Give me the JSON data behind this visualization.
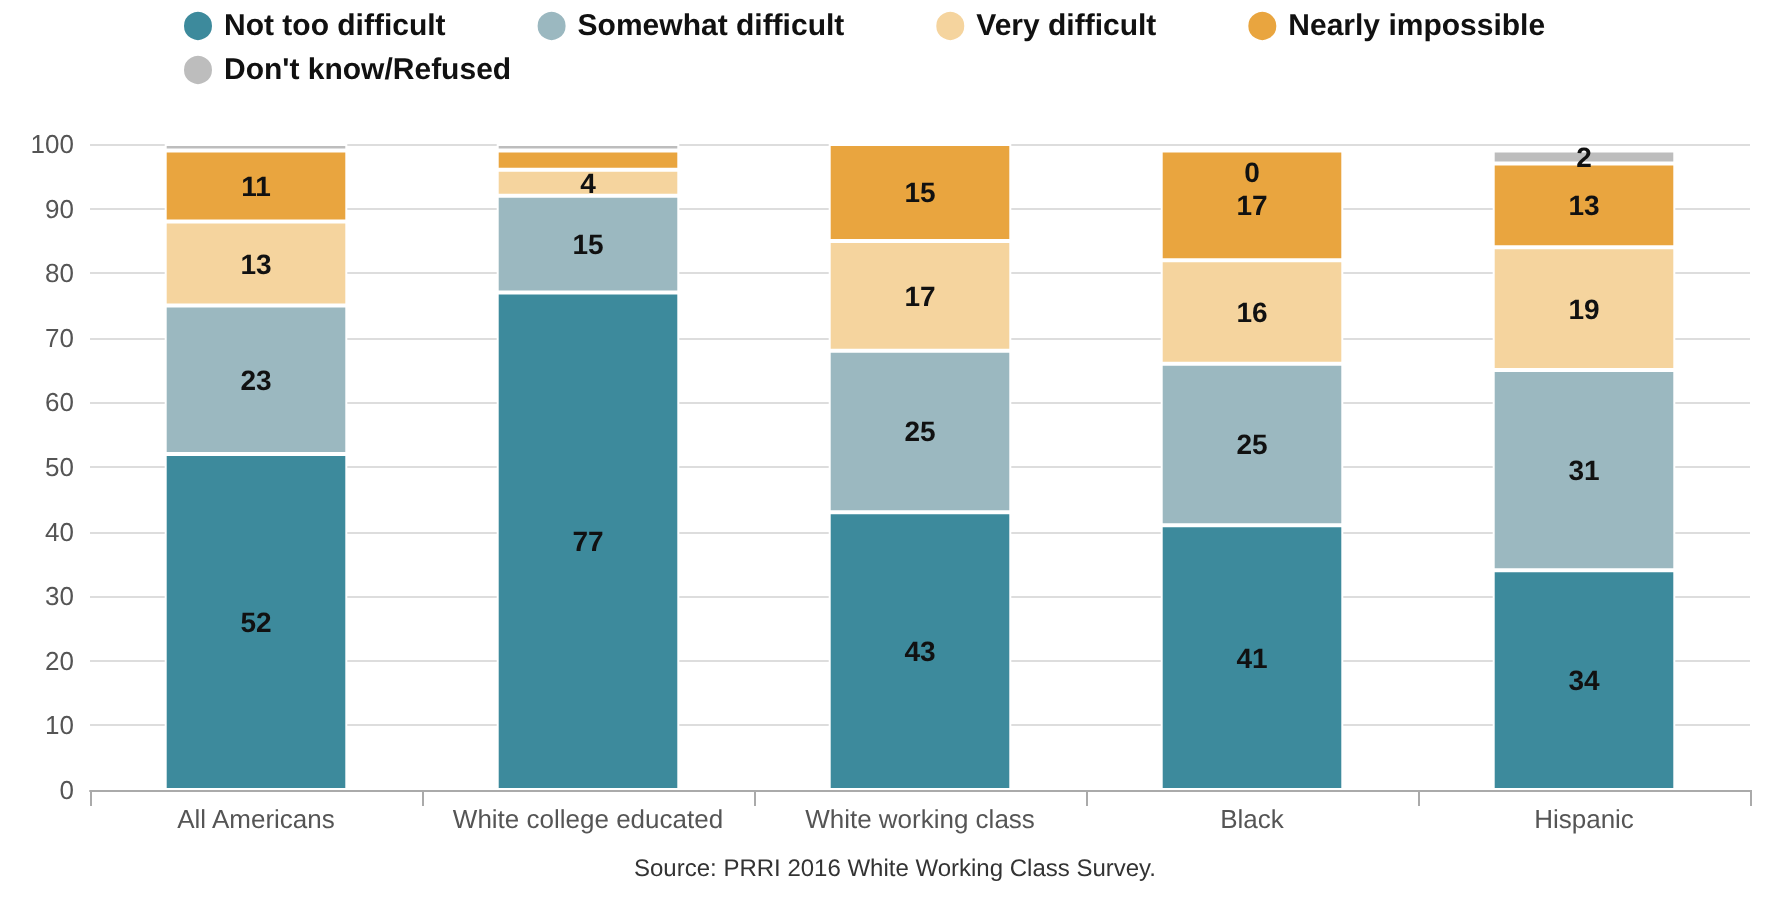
{
  "chart_data": {
    "type": "bar",
    "stacked": true,
    "categories": [
      "All Americans",
      "White college educated",
      "White working class",
      "Black",
      "Hispanic"
    ],
    "series": [
      {
        "name": "Not too difficult",
        "color": "#3d8a9c",
        "values": [
          52,
          77,
          43,
          41,
          34
        ],
        "value_labels": [
          "52",
          "77",
          "43",
          "41",
          "34"
        ]
      },
      {
        "name": "Somewhat difficult",
        "color": "#9bb8c0",
        "values": [
          23,
          15,
          25,
          25,
          31
        ],
        "value_labels": [
          "23",
          "15",
          "25",
          "25",
          "31"
        ]
      },
      {
        "name": "Very difficult",
        "color": "#f5d49e",
        "values": [
          13,
          4,
          17,
          16,
          19
        ],
        "value_labels": [
          "13",
          "4",
          "17",
          "16",
          "19"
        ]
      },
      {
        "name": "Nearly impossible",
        "color": "#e9a53f",
        "values": [
          11,
          3,
          15,
          17,
          13
        ],
        "value_labels": [
          "11",
          null,
          "15",
          "17",
          "13"
        ]
      },
      {
        "name": "Don't know/Refused",
        "color": "#bdbdbd",
        "values": [
          1,
          1,
          null,
          0,
          2
        ],
        "value_labels": [
          null,
          null,
          null,
          "0",
          "2"
        ]
      }
    ],
    "ylim": [
      0,
      100
    ],
    "yticks": [
      0,
      10,
      20,
      30,
      40,
      50,
      60,
      70,
      80,
      90,
      100
    ],
    "grid": "y",
    "legend": "top left",
    "annotations": [
      "Source: PRRI 2016 White Working Class Survey."
    ]
  }
}
